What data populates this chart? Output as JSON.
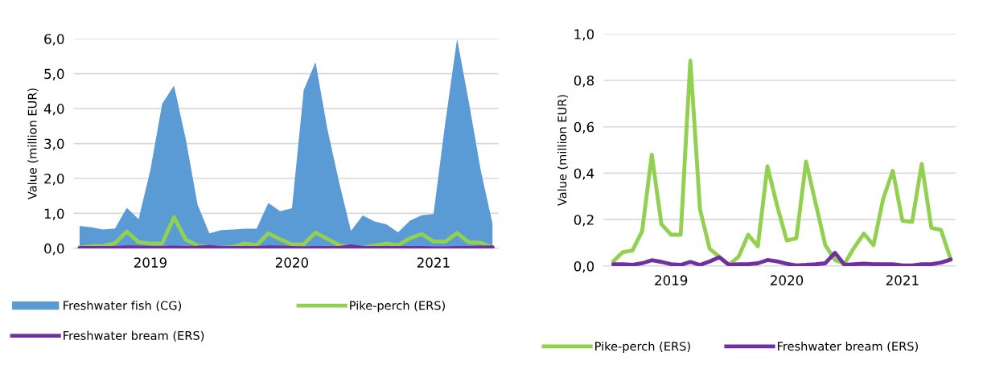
{
  "chart_data": [
    {
      "type": "area",
      "ylabel": "Value (million EUR)",
      "categories": [
        null,
        null,
        null,
        null,
        null,
        null,
        "2019",
        null,
        null,
        null,
        null,
        null,
        null,
        null,
        null,
        null,
        null,
        null,
        "2020",
        null,
        null,
        null,
        null,
        null,
        null,
        null,
        null,
        null,
        null,
        null,
        "2021",
        null,
        null,
        null,
        null,
        null
      ],
      "series": [
        {
          "name": "Freshwater fish (CG)",
          "color": "#5b9bd5",
          "type": "area",
          "values": [
            0.64,
            0.6,
            0.54,
            0.57,
            1.16,
            0.84,
            2.25,
            4.14,
            4.66,
            3.13,
            1.25,
            0.43,
            0.52,
            0.54,
            0.56,
            0.56,
            1.3,
            1.06,
            1.15,
            4.53,
            5.33,
            3.42,
            1.89,
            0.5,
            0.94,
            0.77,
            0.69,
            0.46,
            0.79,
            0.95,
            0.98,
            3.6,
            6.0,
            4.18,
            2.24,
            0.71
          ]
        },
        {
          "name": "Pike-perch (ERS)",
          "color": "#92d050",
          "type": "line",
          "values": [
            0.02,
            0.06,
            0.07,
            0.15,
            0.48,
            0.18,
            0.14,
            0.14,
            0.89,
            0.25,
            0.08,
            0.04,
            0.01,
            0.04,
            0.14,
            0.09,
            0.43,
            0.26,
            0.11,
            0.12,
            0.45,
            0.27,
            0.09,
            0.03,
            0.01,
            0.08,
            0.14,
            0.09,
            0.29,
            0.41,
            0.2,
            0.19,
            0.44,
            0.17,
            0.16,
            0.03
          ]
        },
        {
          "name": "Freshwater bream (ERS)",
          "color": "#7030a0",
          "type": "line",
          "values": [
            0.01,
            0.01,
            0.01,
            0.01,
            0.03,
            0.02,
            0.01,
            0.01,
            0.02,
            0.01,
            0.02,
            0.04,
            0.01,
            0.01,
            0.01,
            0.01,
            0.03,
            0.02,
            0.01,
            0.0,
            0.01,
            0.01,
            0.01,
            0.06,
            0.01,
            0.01,
            0.01,
            0.01,
            0.01,
            0.01,
            0.0,
            0.0,
            0.01,
            0.01,
            0.02,
            0.03
          ]
        }
      ],
      "ylim": [
        0,
        6.0
      ],
      "yticks": [
        {
          "value": 0,
          "label": "0,0"
        },
        {
          "value": 1,
          "label": "1,0"
        },
        {
          "value": 2,
          "label": "2,0"
        },
        {
          "value": 3,
          "label": "3,0"
        },
        {
          "value": 4,
          "label": "4,0"
        },
        {
          "value": 5,
          "label": "5,0"
        },
        {
          "value": 6,
          "label": "6,0"
        }
      ],
      "grid": "y",
      "legend": "bottom"
    },
    {
      "type": "line",
      "ylabel": "Value (million EUR)",
      "categories": [
        null,
        null,
        null,
        null,
        null,
        null,
        "2019",
        null,
        null,
        null,
        null,
        null,
        null,
        null,
        null,
        null,
        null,
        null,
        "2020",
        null,
        null,
        null,
        null,
        null,
        null,
        null,
        null,
        null,
        null,
        null,
        "2021",
        null,
        null,
        null,
        null,
        null
      ],
      "series": [
        {
          "name": "Pike-perch (ERS)",
          "color": "#92d050",
          "values": [
            0.02,
            0.06,
            0.067,
            0.15,
            0.48,
            0.18,
            0.135,
            0.135,
            0.885,
            0.245,
            0.075,
            0.04,
            0.005,
            0.04,
            0.135,
            0.085,
            0.43,
            0.26,
            0.11,
            0.12,
            0.45,
            0.27,
            0.09,
            0.026,
            0.01,
            0.08,
            0.14,
            0.09,
            0.29,
            0.41,
            0.195,
            0.19,
            0.44,
            0.165,
            0.155,
            0.03
          ]
        },
        {
          "name": "Freshwater bream (ERS)",
          "color": "#7030a0",
          "values": [
            0.008,
            0.008,
            0.005,
            0.012,
            0.025,
            0.018,
            0.008,
            0.005,
            0.018,
            0.005,
            0.02,
            0.038,
            0.005,
            0.008,
            0.008,
            0.012,
            0.026,
            0.02,
            0.01,
            0.003,
            0.005,
            0.008,
            0.012,
            0.057,
            0.005,
            0.008,
            0.01,
            0.008,
            0.008,
            0.008,
            0.003,
            0.003,
            0.008,
            0.008,
            0.015,
            0.028
          ]
        }
      ],
      "ylim": [
        0,
        1.0
      ],
      "yticks": [
        {
          "value": 0,
          "label": "0,0"
        },
        {
          "value": 0.2,
          "label": "0,2"
        },
        {
          "value": 0.4,
          "label": "0,4"
        },
        {
          "value": 0.6,
          "label": "0,6"
        },
        {
          "value": 0.8,
          "label": "0,8"
        },
        {
          "value": 1.0,
          "label": "1,0"
        }
      ],
      "grid": "y",
      "legend": "bottom"
    }
  ]
}
